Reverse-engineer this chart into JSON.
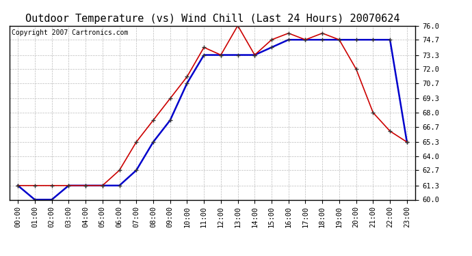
{
  "title": "Outdoor Temperature (vs) Wind Chill (Last 24 Hours) 20070624",
  "copyright": "Copyright 2007 Cartronics.com",
  "x_labels": [
    "00:00",
    "01:00",
    "02:00",
    "03:00",
    "04:00",
    "05:00",
    "06:00",
    "07:00",
    "08:00",
    "09:00",
    "10:00",
    "11:00",
    "12:00",
    "13:00",
    "14:00",
    "15:00",
    "16:00",
    "17:00",
    "18:00",
    "19:00",
    "20:00",
    "21:00",
    "22:00",
    "23:00"
  ],
  "temp_red": [
    61.3,
    61.3,
    61.3,
    61.3,
    61.3,
    61.3,
    62.7,
    65.3,
    67.3,
    69.3,
    71.3,
    74.0,
    73.3,
    76.0,
    73.3,
    74.7,
    75.3,
    74.7,
    75.3,
    74.7,
    72.0,
    68.0,
    66.3,
    65.3
  ],
  "temp_blue": [
    61.3,
    60.0,
    60.0,
    61.3,
    61.3,
    61.3,
    61.3,
    62.7,
    65.3,
    67.3,
    70.7,
    73.3,
    73.3,
    73.3,
    73.3,
    74.0,
    74.7,
    74.7,
    74.7,
    74.7,
    74.7,
    74.7,
    74.7,
    65.3
  ],
  "ylim_min": 60.0,
  "ylim_max": 76.0,
  "yticks": [
    60.0,
    61.3,
    62.7,
    64.0,
    65.3,
    66.7,
    68.0,
    69.3,
    70.7,
    72.0,
    73.3,
    74.7,
    76.0
  ],
  "red_color": "#cc0000",
  "blue_color": "#0000cc",
  "bg_color": "#ffffff",
  "plot_bg_color": "#ffffff",
  "grid_color": "#bbbbbb",
  "title_fontsize": 11,
  "copyright_fontsize": 7,
  "tick_fontsize": 7.5
}
